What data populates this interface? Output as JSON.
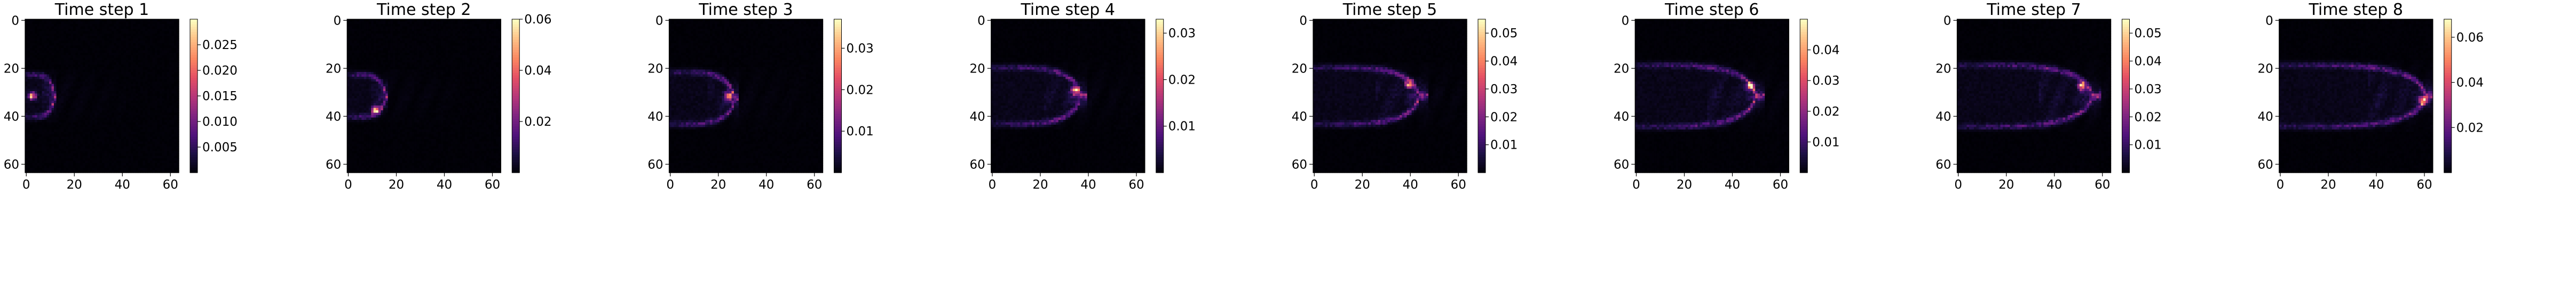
{
  "chart_data": [
    {
      "type": "heatmap",
      "title": "Time step 1",
      "x_ticks": [
        "0",
        "20",
        "40",
        "60"
      ],
      "y_ticks": [
        "0",
        "20",
        "40",
        "60"
      ],
      "colorbar": {
        "min": 0.0,
        "max": 0.03,
        "ticks": [
          "0.005",
          "0.010",
          "0.015",
          "0.020",
          "0.025"
        ],
        "tick_values": [
          0.005,
          0.01,
          0.015,
          0.02,
          0.025
        ]
      },
      "blob": {
        "front_x": 12,
        "center_y": 32,
        "half_height": 9,
        "peak_x": 3,
        "peak_y": 32
      }
    },
    {
      "type": "heatmap",
      "title": "Time step 2",
      "x_ticks": [
        "0",
        "20",
        "40",
        "60"
      ],
      "y_ticks": [
        "0",
        "20",
        "40",
        "60"
      ],
      "colorbar": {
        "min": 0.0,
        "max": 0.06,
        "ticks": [
          "0.02",
          "0.04",
          "0.06"
        ],
        "tick_values": [
          0.02,
          0.04,
          0.06
        ]
      },
      "blob": {
        "front_x": 16,
        "center_y": 32,
        "half_height": 9,
        "peak_x": 12,
        "peak_y": 38
      }
    },
    {
      "type": "heatmap",
      "title": "Time step 3",
      "x_ticks": [
        "0",
        "20",
        "40",
        "60"
      ],
      "y_ticks": [
        "0",
        "20",
        "40",
        "60"
      ],
      "colorbar": {
        "min": 0.0,
        "max": 0.037,
        "ticks": [
          "0.01",
          "0.02",
          "0.03"
        ],
        "tick_values": [
          0.01,
          0.02,
          0.03
        ]
      },
      "blob": {
        "front_x": 27,
        "center_y": 33,
        "half_height": 11,
        "peak_x": 25,
        "peak_y": 32
      }
    },
    {
      "type": "heatmap",
      "title": "Time step 4",
      "x_ticks": [
        "0",
        "20",
        "40",
        "60"
      ],
      "y_ticks": [
        "0",
        "20",
        "40",
        "60"
      ],
      "colorbar": {
        "min": 0.0,
        "max": 0.033,
        "ticks": [
          "0.01",
          "0.02",
          "0.03"
        ],
        "tick_values": [
          0.01,
          0.02,
          0.03
        ]
      },
      "blob": {
        "front_x": 37,
        "center_y": 32,
        "half_height": 12,
        "peak_x": 35,
        "peak_y": 30
      }
    },
    {
      "type": "heatmap",
      "title": "Time step 5",
      "x_ticks": [
        "0",
        "20",
        "40",
        "60"
      ],
      "y_ticks": [
        "0",
        "20",
        "40",
        "60"
      ],
      "colorbar": {
        "min": 0.0,
        "max": 0.055,
        "ticks": [
          "0.01",
          "0.02",
          "0.03",
          "0.04",
          "0.05"
        ],
        "tick_values": [
          0.01,
          0.02,
          0.03,
          0.04,
          0.05
        ]
      },
      "blob": {
        "front_x": 44,
        "center_y": 32,
        "half_height": 12,
        "peak_x": 40,
        "peak_y": 27
      }
    },
    {
      "type": "heatmap",
      "title": "Time step 6",
      "x_ticks": [
        "0",
        "20",
        "40",
        "60"
      ],
      "y_ticks": [
        "0",
        "20",
        "40",
        "60"
      ],
      "colorbar": {
        "min": 0.0,
        "max": 0.05,
        "ticks": [
          "0.01",
          "0.02",
          "0.03",
          "0.04"
        ],
        "tick_values": [
          0.01,
          0.02,
          0.03,
          0.04
        ]
      },
      "blob": {
        "front_x": 50,
        "center_y": 32,
        "half_height": 13,
        "peak_x": 48,
        "peak_y": 28
      }
    },
    {
      "type": "heatmap",
      "title": "Time step 7",
      "x_ticks": [
        "0",
        "20",
        "40",
        "60"
      ],
      "y_ticks": [
        "0",
        "20",
        "40",
        "60"
      ],
      "colorbar": {
        "min": 0.0,
        "max": 0.055,
        "ticks": [
          "0.01",
          "0.02",
          "0.03",
          "0.04",
          "0.05"
        ],
        "tick_values": [
          0.01,
          0.02,
          0.03,
          0.04,
          0.05
        ]
      },
      "blob": {
        "front_x": 56,
        "center_y": 32,
        "half_height": 13,
        "peak_x": 52,
        "peak_y": 28
      }
    },
    {
      "type": "heatmap",
      "title": "Time step 8",
      "x_ticks": [
        "0",
        "20",
        "40",
        "60"
      ],
      "y_ticks": [
        "0",
        "20",
        "40",
        "60"
      ],
      "colorbar": {
        "min": 0.0,
        "max": 0.068,
        "ticks": [
          "0.02",
          "0.04",
          "0.06"
        ],
        "tick_values": [
          0.02,
          0.04,
          0.06
        ]
      },
      "blob": {
        "front_x": 61,
        "center_y": 32,
        "half_height": 13,
        "peak_x": 60,
        "peak_y": 34
      }
    }
  ],
  "colormap": "magma",
  "grid_size": 64,
  "x_range": [
    0,
    64
  ],
  "y_range": [
    0,
    64
  ],
  "y_inverted": true
}
